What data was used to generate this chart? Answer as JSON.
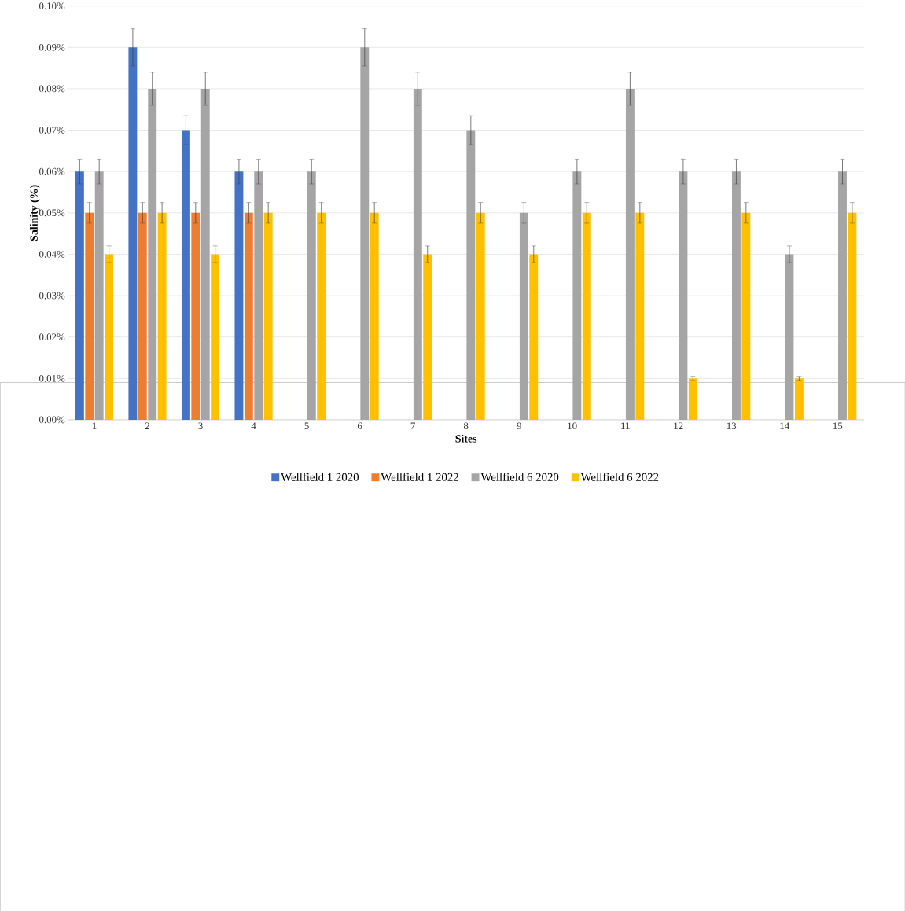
{
  "chart_data": {
    "type": "bar",
    "xlabel": "Sites",
    "ylabel": "Salinity (%)",
    "categories": [
      "1",
      "2",
      "3",
      "4",
      "5",
      "6",
      "7",
      "8",
      "9",
      "10",
      "11",
      "12",
      "13",
      "14",
      "15"
    ],
    "series": [
      {
        "name": "Wellfield 1 2020",
        "color": "#4472c4",
        "values": [
          0.06,
          0.09,
          0.07,
          0.06,
          null,
          null,
          null,
          null,
          null,
          null,
          null,
          null,
          null,
          null,
          null
        ],
        "errors": [
          0.003,
          0.0045,
          0.0035,
          0.003,
          null,
          null,
          null,
          null,
          null,
          null,
          null,
          null,
          null,
          null,
          null
        ]
      },
      {
        "name": "Wellfield 1 2022",
        "color": "#ed7d31",
        "values": [
          0.05,
          0.05,
          0.05,
          0.05,
          null,
          null,
          null,
          null,
          null,
          null,
          null,
          null,
          null,
          null,
          null
        ],
        "errors": [
          0.0025,
          0.0025,
          0.0025,
          0.0025,
          null,
          null,
          null,
          null,
          null,
          null,
          null,
          null,
          null,
          null,
          null
        ]
      },
      {
        "name": "Wellfield 6 2020",
        "color": "#a5a5a5",
        "values": [
          0.06,
          0.08,
          0.08,
          0.06,
          0.06,
          0.09,
          0.08,
          0.07,
          0.05,
          0.06,
          0.08,
          0.06,
          0.06,
          0.04,
          0.06
        ],
        "errors": [
          0.003,
          0.004,
          0.004,
          0.003,
          0.003,
          0.0045,
          0.004,
          0.0035,
          0.0025,
          0.003,
          0.004,
          0.003,
          0.003,
          0.002,
          0.003
        ]
      },
      {
        "name": "Wellfield 6 2022",
        "color": "#ffc000",
        "values": [
          0.04,
          0.05,
          0.04,
          0.05,
          0.05,
          0.05,
          0.04,
          0.05,
          0.04,
          0.05,
          0.05,
          0.01,
          0.05,
          0.01,
          0.05
        ],
        "errors": [
          0.002,
          0.0025,
          0.002,
          0.0025,
          0.0025,
          0.0025,
          0.002,
          0.0025,
          0.002,
          0.0025,
          0.0025,
          0.0005,
          0.0025,
          0.0005,
          0.0025
        ]
      }
    ],
    "ylim": [
      0,
      0.1
    ],
    "yticks": [
      {
        "value": 0,
        "label": "0.00%"
      },
      {
        "value": 0.01,
        "label": "0.01%"
      },
      {
        "value": 0.02,
        "label": "0.02%"
      },
      {
        "value": 0.03,
        "label": "0.03%"
      },
      {
        "value": 0.04,
        "label": "0.04%"
      },
      {
        "value": 0.05,
        "label": "0.05%"
      },
      {
        "value": 0.06,
        "label": "0.06%"
      },
      {
        "value": 0.07,
        "label": "0.07%"
      },
      {
        "value": 0.08,
        "label": "0.08%"
      },
      {
        "value": 0.09,
        "label": "0.09%"
      },
      {
        "value": 0.1,
        "label": "0.10%"
      }
    ],
    "grid": "y",
    "legend": "bottom"
  }
}
